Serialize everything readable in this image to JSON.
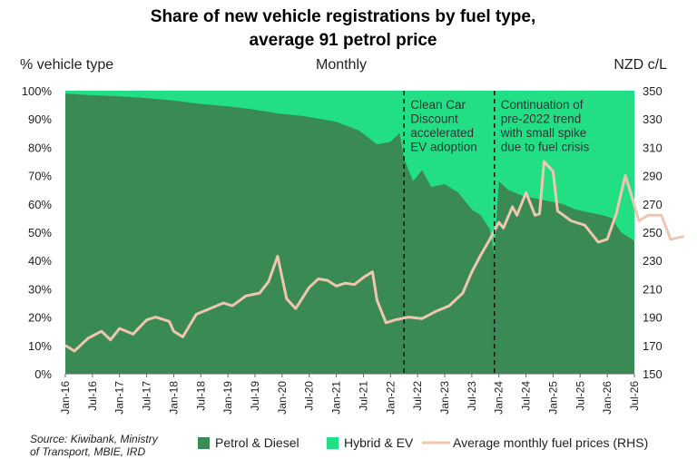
{
  "chart_data": {
    "type": "area",
    "title_line1": "Share of new vehicle registrations by fuel type,",
    "title_line2": "average 91 petrol price",
    "subtitle": "Monthly",
    "ylabel_left": "% vehicle type",
    "ylabel_right": "NZD c/L",
    "y_left_ticks": [
      "0%",
      "10%",
      "20%",
      "30%",
      "40%",
      "50%",
      "60%",
      "70%",
      "80%",
      "90%",
      "100%"
    ],
    "y_right_ticks": [
      "150",
      "170",
      "190",
      "210",
      "230",
      "250",
      "270",
      "290",
      "310",
      "330",
      "350"
    ],
    "ylim_left": [
      0,
      100
    ],
    "ylim_right": [
      150,
      350
    ],
    "x_start": "2016-01",
    "x_end": "2026-07",
    "x_tick_labels": [
      "Jan-16",
      "Jul-16",
      "Jan-17",
      "Jul-17",
      "Jan-18",
      "Jul-18",
      "Jan-19",
      "Jul-19",
      "Jan-20",
      "Jul-20",
      "Jan-21",
      "Jul-21",
      "Jan-22",
      "Jul-22",
      "Jan-23",
      "Jul-23",
      "Jan-24",
      "Jul-24",
      "Jan-25",
      "Jul-25",
      "Jan-26",
      "Jul-26"
    ],
    "annotations": [
      {
        "date": "2022-04",
        "lines": [
          "Clean Car",
          "Discount",
          "accelerated",
          "EV adoption"
        ]
      },
      {
        "date": "2023-12",
        "lines": [
          "Continuation of",
          "pre-2022 trend",
          "with small spike",
          "due to fuel crisis"
        ]
      }
    ],
    "series": [
      {
        "name": "Petrol & Diesel",
        "color": "#3a8a55",
        "petrol_share_keypoints": [
          [
            "2016-01",
            99
          ],
          [
            "2016-06",
            98.5
          ],
          [
            "2017-01",
            98
          ],
          [
            "2017-06",
            97.5
          ],
          [
            "2018-01",
            96.5
          ],
          [
            "2018-06",
            95.5
          ],
          [
            "2019-01",
            94.5
          ],
          [
            "2019-06",
            93.5
          ],
          [
            "2019-12",
            92
          ],
          [
            "2020-06",
            91
          ],
          [
            "2021-01",
            89
          ],
          [
            "2021-06",
            86
          ],
          [
            "2021-10",
            81
          ],
          [
            "2022-01",
            82
          ],
          [
            "2022-03",
            85
          ],
          [
            "2022-04",
            76
          ],
          [
            "2022-06",
            68
          ],
          [
            "2022-08",
            72
          ],
          [
            "2022-10",
            66
          ],
          [
            "2023-01",
            67
          ],
          [
            "2023-04",
            64
          ],
          [
            "2023-07",
            58
          ],
          [
            "2023-09",
            56
          ],
          [
            "2023-11",
            51
          ],
          [
            "2023-12",
            42
          ],
          [
            "2024-01",
            68
          ],
          [
            "2024-03",
            65
          ],
          [
            "2024-06",
            63
          ],
          [
            "2024-09",
            62
          ],
          [
            "2024-12",
            61
          ],
          [
            "2025-03",
            60
          ],
          [
            "2025-06",
            58
          ],
          [
            "2025-09",
            57
          ],
          [
            "2025-12",
            56
          ],
          [
            "2026-02",
            55
          ],
          [
            "2026-04",
            50
          ],
          [
            "2026-07",
            47
          ]
        ]
      },
      {
        "name": "Hybrid & EV",
        "color": "#22de84"
      },
      {
        "name": "Average monthly fuel prices (RHS)",
        "color": "#f0c6b0",
        "price_keypoints": [
          [
            "2016-01",
            170
          ],
          [
            "2016-03",
            166
          ],
          [
            "2016-06",
            175
          ],
          [
            "2016-09",
            180
          ],
          [
            "2016-11",
            174
          ],
          [
            "2017-01",
            182
          ],
          [
            "2017-04",
            178
          ],
          [
            "2017-07",
            188
          ],
          [
            "2017-09",
            190
          ],
          [
            "2017-12",
            187
          ],
          [
            "2018-01",
            180
          ],
          [
            "2018-03",
            176
          ],
          [
            "2018-06",
            192
          ],
          [
            "2018-09",
            196
          ],
          [
            "2018-12",
            200
          ],
          [
            "2019-02",
            198
          ],
          [
            "2019-05",
            205
          ],
          [
            "2019-08",
            207
          ],
          [
            "2019-10",
            215
          ],
          [
            "2019-12",
            233
          ],
          [
            "2020-02",
            203
          ],
          [
            "2020-04",
            196
          ],
          [
            "2020-07",
            211
          ],
          [
            "2020-09",
            217
          ],
          [
            "2020-11",
            216
          ],
          [
            "2021-01",
            212
          ],
          [
            "2021-03",
            214
          ],
          [
            "2021-05",
            213
          ],
          [
            "2021-07",
            218
          ],
          [
            "2021-09",
            222
          ],
          [
            "2021-10",
            202
          ],
          [
            "2021-12",
            186
          ],
          [
            "2022-02",
            188
          ],
          [
            "2022-05",
            190
          ],
          [
            "2022-08",
            189
          ],
          [
            "2022-11",
            194
          ],
          [
            "2023-02",
            198
          ],
          [
            "2023-05",
            207
          ],
          [
            "2023-07",
            222
          ],
          [
            "2023-09",
            234
          ],
          [
            "2023-11",
            245
          ],
          [
            "2024-01",
            257
          ],
          [
            "2024-02",
            253
          ],
          [
            "2024-04",
            268
          ],
          [
            "2024-05",
            262
          ],
          [
            "2024-07",
            278
          ],
          [
            "2024-09",
            262
          ],
          [
            "2024-10",
            263
          ],
          [
            "2024-11",
            300
          ],
          [
            "2025-01",
            293
          ],
          [
            "2025-02",
            265
          ],
          [
            "2025-05",
            258
          ],
          [
            "2025-08",
            255
          ],
          [
            "2025-11",
            243
          ],
          [
            "2026-01",
            245
          ],
          [
            "2026-03",
            263
          ],
          [
            "2026-05",
            290
          ],
          [
            "2026-06",
            280
          ],
          [
            "2026-08",
            258
          ],
          [
            "2026-10",
            262
          ],
          [
            "2027-01",
            262
          ],
          [
            "2027-03",
            245
          ],
          [
            "2027-06",
            247
          ]
        ]
      }
    ]
  },
  "source": "Source: Kiwibank, Ministry of Transport, MBIE, IRD",
  "legend": {
    "petrol": "Petrol & Diesel",
    "hybrid": "Hybrid & EV",
    "fuel": "Average monthly fuel prices (RHS)"
  }
}
